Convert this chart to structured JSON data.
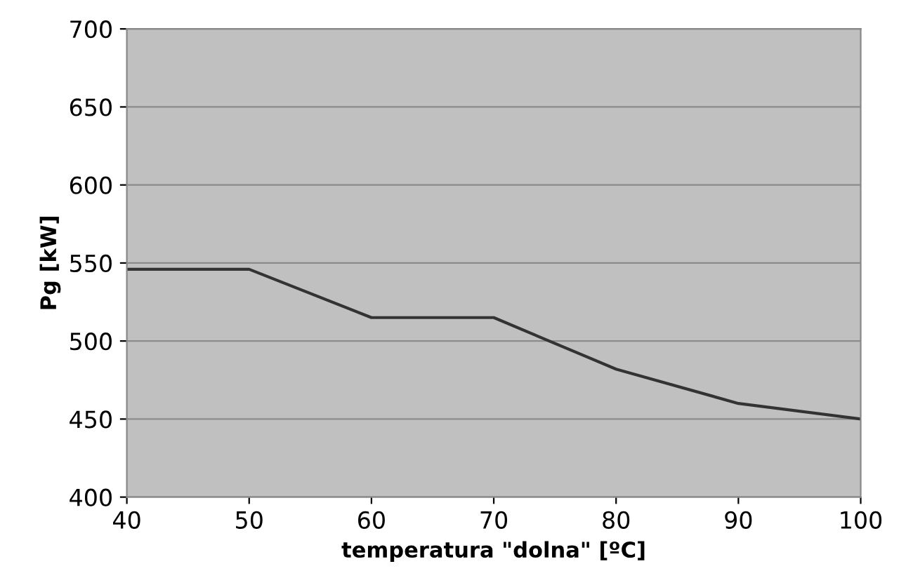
{
  "chart_data": {
    "type": "line",
    "xlabel": "temperatura \"dolna\" [ºC]",
    "ylabel": "Pg [kW]",
    "x": [
      40,
      50,
      60,
      70,
      80,
      90,
      100
    ],
    "series": [
      {
        "color": "#333333",
        "values": [
          546,
          546,
          515,
          515,
          482,
          460,
          450
        ]
      }
    ],
    "xlim": [
      40,
      100
    ],
    "xticks": [
      40,
      50,
      60,
      70,
      80,
      90,
      100
    ],
    "ylim": [
      400,
      700
    ],
    "yticks": [
      400,
      450,
      500,
      550,
      600,
      650,
      700
    ],
    "grid": "y",
    "marker": "none",
    "line_style": "solid"
  }
}
